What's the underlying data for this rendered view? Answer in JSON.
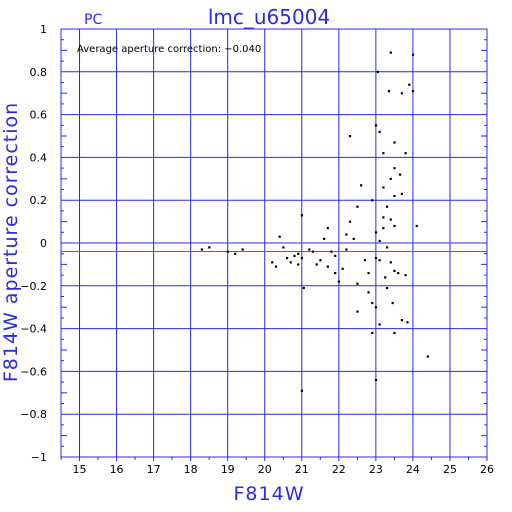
{
  "chart_data": {
    "type": "scatter",
    "title": "lmc_u65004",
    "corner_label": "PC",
    "annotation": "Average aperture correction: −0.040",
    "xlabel": "F814W",
    "ylabel": "F814W aperture correction",
    "xlim": [
      14.5,
      26
    ],
    "ylim": [
      -1,
      1
    ],
    "x_ticks": [
      15,
      16,
      17,
      18,
      19,
      20,
      21,
      22,
      23,
      24,
      25,
      26
    ],
    "y_ticks": [
      1,
      0.8,
      0.6,
      0.4,
      0.2,
      0,
      -0.2,
      -0.4,
      -0.6,
      -0.8,
      -1
    ],
    "y_tick_labels": [
      "1",
      "0.8",
      "0.6",
      "0.4",
      "0.2",
      "0",
      "−0.2",
      "−0.4",
      "−0.6",
      "−0.8",
      "−1"
    ],
    "grid": true,
    "reference_line_y": -0.04,
    "colors": {
      "grid": "#2a2ae8",
      "text_accent": "#2a2ae8",
      "reference_line": "#b84a1e",
      "points": "#000000"
    },
    "points": [
      {
        "x": 18.3,
        "y": -0.03
      },
      {
        "x": 18.5,
        "y": -0.02
      },
      {
        "x": 19.0,
        "y": -0.04
      },
      {
        "x": 19.2,
        "y": -0.05
      },
      {
        "x": 19.4,
        "y": -0.03
      },
      {
        "x": 20.2,
        "y": -0.09
      },
      {
        "x": 20.3,
        "y": -0.11
      },
      {
        "x": 20.4,
        "y": 0.03
      },
      {
        "x": 20.5,
        "y": -0.02
      },
      {
        "x": 20.6,
        "y": -0.07
      },
      {
        "x": 20.7,
        "y": -0.09
      },
      {
        "x": 20.8,
        "y": -0.06
      },
      {
        "x": 20.9,
        "y": -0.05
      },
      {
        "x": 20.9,
        "y": -0.1
      },
      {
        "x": 21.0,
        "y": 0.13
      },
      {
        "x": 21.0,
        "y": -0.07
      },
      {
        "x": 21.05,
        "y": -0.21
      },
      {
        "x": 21.0,
        "y": -0.69
      },
      {
        "x": 21.2,
        "y": -0.03
      },
      {
        "x": 21.3,
        "y": -0.04
      },
      {
        "x": 21.4,
        "y": -0.1
      },
      {
        "x": 21.5,
        "y": -0.08
      },
      {
        "x": 21.6,
        "y": 0.02
      },
      {
        "x": 21.7,
        "y": 0.07
      },
      {
        "x": 21.7,
        "y": -0.11
      },
      {
        "x": 21.8,
        "y": -0.04
      },
      {
        "x": 21.9,
        "y": -0.06
      },
      {
        "x": 21.9,
        "y": -0.14
      },
      {
        "x": 22.0,
        "y": -0.18
      },
      {
        "x": 22.1,
        "y": -0.12
      },
      {
        "x": 22.2,
        "y": -0.03
      },
      {
        "x": 22.2,
        "y": 0.04
      },
      {
        "x": 22.3,
        "y": 0.1
      },
      {
        "x": 22.3,
        "y": 0.5
      },
      {
        "x": 22.4,
        "y": 0.02
      },
      {
        "x": 22.5,
        "y": -0.19
      },
      {
        "x": 22.5,
        "y": -0.32
      },
      {
        "x": 22.5,
        "y": 0.17
      },
      {
        "x": 22.6,
        "y": 0.27
      },
      {
        "x": 22.7,
        "y": -0.08
      },
      {
        "x": 22.8,
        "y": -0.14
      },
      {
        "x": 22.8,
        "y": -0.23
      },
      {
        "x": 22.9,
        "y": 0.2
      },
      {
        "x": 22.9,
        "y": -0.28
      },
      {
        "x": 22.9,
        "y": -0.42
      },
      {
        "x": 23.0,
        "y": 0.55
      },
      {
        "x": 23.0,
        "y": 0.05
      },
      {
        "x": 23.0,
        "y": -0.07
      },
      {
        "x": 23.0,
        "y": -0.3
      },
      {
        "x": 23.0,
        "y": -0.64
      },
      {
        "x": 23.05,
        "y": 0.8
      },
      {
        "x": 23.1,
        "y": 0.52
      },
      {
        "x": 23.1,
        "y": 0.01
      },
      {
        "x": 23.1,
        "y": -0.08
      },
      {
        "x": 23.1,
        "y": -0.38
      },
      {
        "x": 23.2,
        "y": 0.42
      },
      {
        "x": 23.2,
        "y": 0.26
      },
      {
        "x": 23.2,
        "y": 0.12
      },
      {
        "x": 23.2,
        "y": 0.07
      },
      {
        "x": 23.25,
        "y": -0.16
      },
      {
        "x": 23.3,
        "y": 0.17
      },
      {
        "x": 23.3,
        "y": -0.02
      },
      {
        "x": 23.3,
        "y": -0.21
      },
      {
        "x": 23.35,
        "y": 0.71
      },
      {
        "x": 23.4,
        "y": 0.89
      },
      {
        "x": 23.4,
        "y": 0.3
      },
      {
        "x": 23.4,
        "y": 0.11
      },
      {
        "x": 23.4,
        "y": -0.09
      },
      {
        "x": 23.45,
        "y": -0.28
      },
      {
        "x": 23.5,
        "y": 0.47
      },
      {
        "x": 23.5,
        "y": 0.35
      },
      {
        "x": 23.5,
        "y": 0.22
      },
      {
        "x": 23.5,
        "y": 0.08
      },
      {
        "x": 23.5,
        "y": -0.13
      },
      {
        "x": 23.5,
        "y": -0.42
      },
      {
        "x": 23.6,
        "y": -0.14
      },
      {
        "x": 23.65,
        "y": 0.32
      },
      {
        "x": 23.7,
        "y": 0.7
      },
      {
        "x": 23.7,
        "y": 0.23
      },
      {
        "x": 23.7,
        "y": -0.36
      },
      {
        "x": 23.8,
        "y": 0.42
      },
      {
        "x": 23.8,
        "y": -0.15
      },
      {
        "x": 23.85,
        "y": -0.37
      },
      {
        "x": 23.9,
        "y": 0.74
      },
      {
        "x": 24.0,
        "y": 0.88
      },
      {
        "x": 24.0,
        "y": 0.71
      },
      {
        "x": 24.1,
        "y": 0.08
      },
      {
        "x": 24.4,
        "y": -0.53
      }
    ]
  }
}
